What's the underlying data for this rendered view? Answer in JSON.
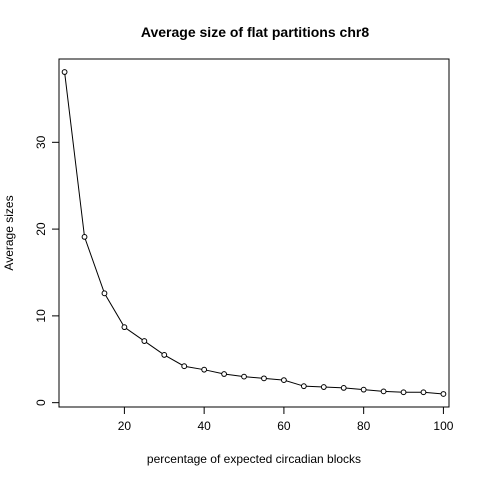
{
  "chart_data": {
    "type": "line",
    "title": "Average size of flat partitions chr8",
    "xlabel": "percentage of expected circadian blocks",
    "ylabel": "Average sizes",
    "x": [
      5,
      10,
      15,
      20,
      25,
      30,
      35,
      40,
      45,
      50,
      55,
      60,
      65,
      70,
      75,
      80,
      85,
      90,
      95,
      100
    ],
    "series": [
      {
        "values": [
          38.1,
          19.1,
          12.6,
          8.7,
          7.1,
          5.5,
          4.2,
          3.8,
          3.3,
          3.0,
          2.8,
          2.6,
          1.9,
          1.8,
          1.7,
          1.5,
          1.3,
          1.2,
          1.2,
          1.0
        ]
      }
    ],
    "xlim": [
      3.6,
      101.4
    ],
    "ylim": [
      -0.5,
      39.6
    ],
    "xticks": [
      20,
      40,
      60,
      80,
      100
    ],
    "yticks": [
      0,
      10,
      20,
      30
    ],
    "marker": "open-circle",
    "grid": false,
    "legend": "none"
  }
}
